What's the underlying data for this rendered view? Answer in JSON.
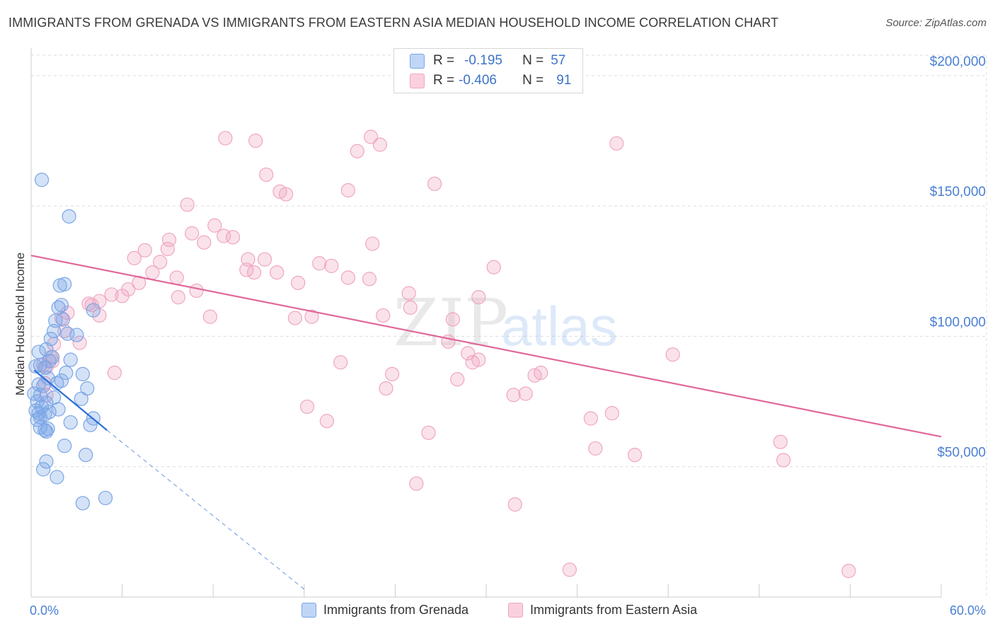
{
  "title": "IMMIGRANTS FROM GRENADA VS IMMIGRANTS FROM EASTERN ASIA MEDIAN HOUSEHOLD INCOME CORRELATION CHART",
  "source": "Source: ZipAtlas.com",
  "watermark": {
    "zip": "ZIP",
    "atlas": "atlas"
  },
  "legend": {
    "series1": {
      "r_label": "R =",
      "r_value": "-0.195",
      "n_label": "N =",
      "n_value": "57"
    },
    "series2": {
      "r_label": "R =",
      "r_value": "-0.406",
      "n_label": "N =",
      "n_value": "91"
    }
  },
  "chart_data": {
    "type": "scatter",
    "ylabel": "Median Household Income",
    "xlim": [
      0,
      60
    ],
    "ylim": [
      0,
      210000
    ],
    "x_tick_labels": [
      "0.0%",
      "60.0%"
    ],
    "y_ticks": [
      {
        "value": 200000,
        "label": "$200,000"
      },
      {
        "value": 150000,
        "label": "$150,000"
      },
      {
        "value": 100000,
        "label": "$100,000"
      },
      {
        "value": 50000,
        "label": "$50,000"
      }
    ],
    "colors": {
      "grenada": "#7aa6e6",
      "grenada_line": "#2e6fd6",
      "easia": "#f0a6c0",
      "easia_line": "#e0689a"
    },
    "series": [
      {
        "name": "Immigrants from Grenada",
        "r": -0.195,
        "n": 57,
        "trend": {
          "solid": [
            [
              0.2,
              87000
            ],
            [
              5,
              64000
            ]
          ],
          "dashed": [
            [
              5,
              64000
            ],
            [
              18,
              3000
            ]
          ]
        },
        "points": [
          [
            0.7,
            160000
          ],
          [
            2.5,
            146000
          ],
          [
            2.2,
            120000
          ],
          [
            1.9,
            119500
          ],
          [
            2.0,
            112000
          ],
          [
            1.8,
            111000
          ],
          [
            4.1,
            110000
          ],
          [
            1.6,
            106000
          ],
          [
            2.1,
            106500
          ],
          [
            1.5,
            102000
          ],
          [
            2.4,
            101000
          ],
          [
            3.0,
            100500
          ],
          [
            1.3,
            99000
          ],
          [
            1.0,
            95000
          ],
          [
            0.5,
            94000
          ],
          [
            1.4,
            92000
          ],
          [
            2.6,
            91000
          ],
          [
            1.2,
            90500
          ],
          [
            0.6,
            89000
          ],
          [
            0.3,
            88500
          ],
          [
            0.9,
            88000
          ],
          [
            2.3,
            86000
          ],
          [
            3.4,
            85500
          ],
          [
            1.1,
            84000
          ],
          [
            2.0,
            83000
          ],
          [
            1.7,
            82000
          ],
          [
            0.5,
            81500
          ],
          [
            0.8,
            81000
          ],
          [
            3.7,
            80000
          ],
          [
            0.2,
            78000
          ],
          [
            0.6,
            77500
          ],
          [
            1.5,
            76500
          ],
          [
            3.3,
            76000
          ],
          [
            0.4,
            75000
          ],
          [
            1.0,
            74500
          ],
          [
            0.7,
            73000
          ],
          [
            1.8,
            72000
          ],
          [
            0.3,
            71500
          ],
          [
            1.2,
            71000
          ],
          [
            0.5,
            70500
          ],
          [
            0.9,
            70000
          ],
          [
            0.6,
            69000
          ],
          [
            0.4,
            68000
          ],
          [
            4.1,
            68500
          ],
          [
            2.6,
            67000
          ],
          [
            3.9,
            66000
          ],
          [
            0.6,
            65000
          ],
          [
            1.1,
            64500
          ],
          [
            0.9,
            64000
          ],
          [
            1.0,
            63500
          ],
          [
            2.2,
            58000
          ],
          [
            3.6,
            54500
          ],
          [
            1.0,
            52000
          ],
          [
            0.8,
            49000
          ],
          [
            1.7,
            46000
          ],
          [
            3.4,
            36000
          ],
          [
            4.9,
            38000
          ]
        ]
      },
      {
        "name": "Immigrants from Eastern Asia",
        "r": -0.406,
        "n": 91,
        "trend": {
          "solid": [
            [
              0,
              131000
            ],
            [
              60,
              61500
            ]
          ]
        },
        "points": [
          [
            12.8,
            176000
          ],
          [
            14.8,
            175000
          ],
          [
            22.4,
            176500
          ],
          [
            23.0,
            173500
          ],
          [
            21.5,
            171000
          ],
          [
            38.6,
            174000
          ],
          [
            15.5,
            162000
          ],
          [
            26.6,
            158500
          ],
          [
            20.9,
            156000
          ],
          [
            16.4,
            155500
          ],
          [
            16.8,
            154500
          ],
          [
            10.3,
            150500
          ],
          [
            12.1,
            142500
          ],
          [
            10.6,
            139500
          ],
          [
            12.7,
            138500
          ],
          [
            13.3,
            138000
          ],
          [
            9.1,
            137000
          ],
          [
            11.4,
            136000
          ],
          [
            22.5,
            135500
          ],
          [
            7.5,
            133000
          ],
          [
            9.0,
            133500
          ],
          [
            6.8,
            130000
          ],
          [
            14.3,
            129500
          ],
          [
            15.4,
            129500
          ],
          [
            8.5,
            128500
          ],
          [
            19.0,
            128000
          ],
          [
            19.8,
            127000
          ],
          [
            30.5,
            126500
          ],
          [
            14.2,
            125500
          ],
          [
            14.7,
            124500
          ],
          [
            8.0,
            124500
          ],
          [
            16.2,
            124500
          ],
          [
            20.9,
            122500
          ],
          [
            22.3,
            122000
          ],
          [
            9.6,
            122500
          ],
          [
            7.1,
            120500
          ],
          [
            17.6,
            120500
          ],
          [
            10.9,
            117500
          ],
          [
            6.4,
            118000
          ],
          [
            24.9,
            116500
          ],
          [
            5.3,
            116000
          ],
          [
            6.0,
            115500
          ],
          [
            9.7,
            115000
          ],
          [
            29.5,
            115000
          ],
          [
            4.5,
            113500
          ],
          [
            3.8,
            112500
          ],
          [
            4.0,
            112000
          ],
          [
            25.0,
            111000
          ],
          [
            2.4,
            109000
          ],
          [
            4.5,
            108000
          ],
          [
            11.8,
            107500
          ],
          [
            23.2,
            108000
          ],
          [
            17.4,
            107000
          ],
          [
            18.5,
            107500
          ],
          [
            27.8,
            106500
          ],
          [
            2.0,
            107000
          ],
          [
            2.2,
            102000
          ],
          [
            3.2,
            97500
          ],
          [
            1.5,
            97000
          ],
          [
            27.5,
            98000
          ],
          [
            42.3,
            93000
          ],
          [
            28.8,
            93500
          ],
          [
            1.3,
            92000
          ],
          [
            1.4,
            90500
          ],
          [
            20.4,
            90000
          ],
          [
            29.1,
            90000
          ],
          [
            29.5,
            91000
          ],
          [
            0.8,
            89000
          ],
          [
            1.0,
            88000
          ],
          [
            33.6,
            86000
          ],
          [
            5.5,
            86000
          ],
          [
            33.2,
            85000
          ],
          [
            23.8,
            85500
          ],
          [
            28.1,
            83500
          ],
          [
            0.9,
            82000
          ],
          [
            23.4,
            80000
          ],
          [
            1.0,
            77500
          ],
          [
            32.6,
            78000
          ],
          [
            31.8,
            77500
          ],
          [
            18.2,
            73000
          ],
          [
            38.3,
            70500
          ],
          [
            36.9,
            68500
          ],
          [
            19.5,
            67500
          ],
          [
            26.2,
            63000
          ],
          [
            49.4,
            59500
          ],
          [
            37.2,
            57000
          ],
          [
            39.8,
            54500
          ],
          [
            49.6,
            52500
          ],
          [
            25.4,
            43500
          ],
          [
            31.9,
            35500
          ],
          [
            35.5,
            10500
          ],
          [
            53.9,
            10000
          ]
        ]
      }
    ]
  },
  "bottom_legend": {
    "grenada": "Immigrants from Grenada",
    "easia": "Immigrants from Eastern Asia"
  }
}
